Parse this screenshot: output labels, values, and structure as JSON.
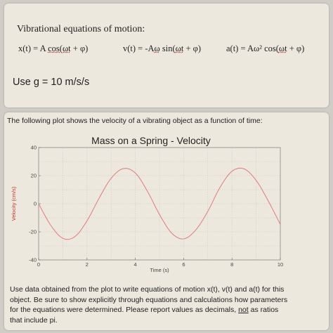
{
  "header": {
    "title": "Vibrational equations of motion:",
    "eq_x_pre": "x(t) = A ",
    "eq_x_u": "cos(ωt",
    "eq_x_post": " + φ)",
    "eq_v_pre": "v(t) = -A",
    "eq_v_u": "ω",
    "eq_v_mid": " sin(",
    "eq_v_u2": "ωt",
    "eq_v_post": " + φ)",
    "eq_a_pre": "a(t) = Aω² cos(",
    "eq_a_u": "ωt",
    "eq_a_post": " + φ)",
    "gravity": "Use g = 10 m/s/s"
  },
  "problem": {
    "intro": "The following plot shows the velocity of a vibrating object as a function of time:",
    "instructions_pre": "Use data obtained from the plot to write equations of motion x(t), v(t) and a(t) for this object. Be sure to show explicitly through equations and calculations how parameters for the equations were determined. Please report values as decimals, ",
    "instructions_ul": "not",
    "instructions_post": " as ratios that include pi."
  },
  "chart_data": {
    "type": "line",
    "title": "Mass on a Spring - Velocity",
    "xlabel": "Time (s)",
    "ylabel": "Velocity (cm/s)",
    "xlim": [
      0,
      10
    ],
    "ylim": [
      -40,
      40
    ],
    "xticks": [
      0,
      2,
      4,
      6,
      8,
      10
    ],
    "yticks": [
      40,
      20,
      0,
      -20,
      -40
    ],
    "grid": true,
    "series": [
      {
        "color": "#e07b7b",
        "x": [
          0,
          0.5,
          1,
          1.5,
          2,
          2.5,
          3,
          3.5,
          4,
          4.5,
          5,
          5.5,
          6,
          6.5,
          7,
          7.5,
          8,
          8.5,
          9,
          9.5,
          10
        ],
        "y": [
          0,
          -15.3,
          -24.6,
          -23.4,
          -12.2,
          3.9,
          18.1,
          25.0,
          21.9,
          8.9,
          -7.6,
          -20.8,
          -25.0,
          -18.7,
          -5.4,
          11.5,
          23.1,
          24.8,
          16.6,
          2.0,
          -14.7
        ]
      }
    ]
  }
}
